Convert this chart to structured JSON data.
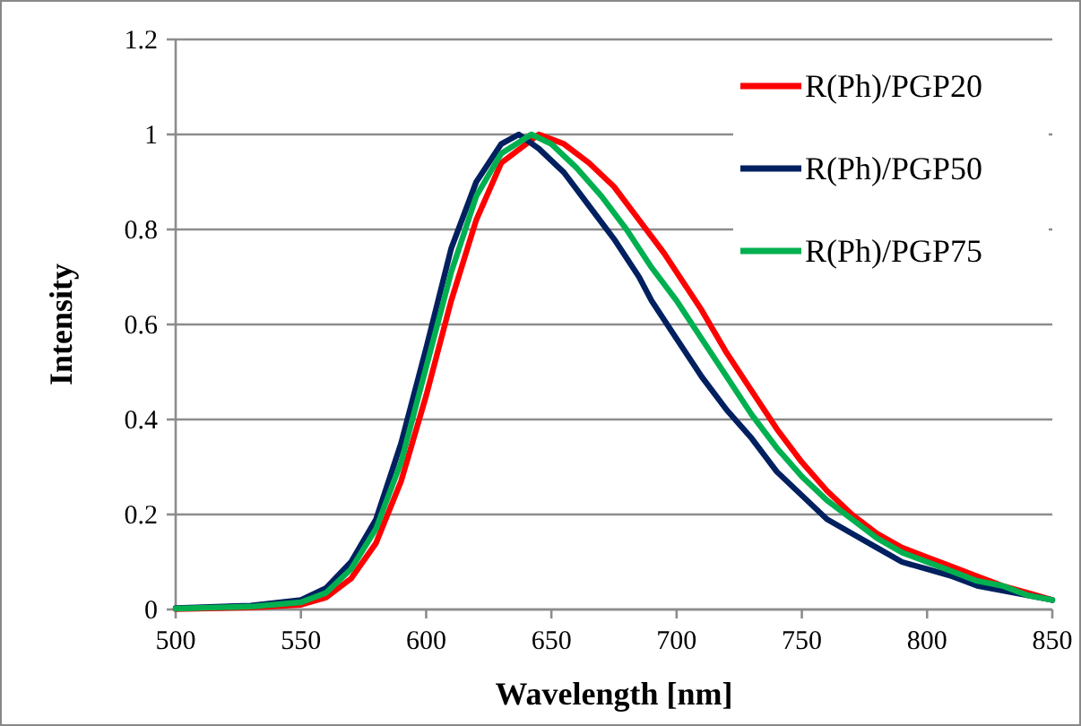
{
  "chart_data": {
    "type": "line",
    "xlabel": "Wavelength [nm]",
    "ylabel": "Intensity",
    "xlim": [
      500,
      850
    ],
    "xticks": [
      500,
      550,
      600,
      650,
      700,
      750,
      800,
      850
    ],
    "ylim": [
      0,
      1.2
    ],
    "yticks": [
      0,
      0.2,
      0.4,
      0.6,
      0.8,
      1,
      1.2
    ],
    "grid": "y",
    "legend": "top right",
    "marker": "none",
    "line_style": "solid",
    "series": [
      {
        "name": "R(Ph)/PGP20",
        "color": "#ff0000",
        "x": [
          500,
          530,
          550,
          560,
          570,
          580,
          590,
          600,
          610,
          620,
          630,
          645,
          655,
          665,
          675,
          685,
          695,
          700,
          710,
          720,
          730,
          740,
          750,
          760,
          770,
          780,
          790,
          800,
          810,
          820,
          830,
          840,
          850
        ],
        "values": [
          0.001,
          0.004,
          0.01,
          0.025,
          0.065,
          0.14,
          0.27,
          0.45,
          0.65,
          0.82,
          0.94,
          1.0,
          0.98,
          0.94,
          0.89,
          0.82,
          0.75,
          0.71,
          0.63,
          0.54,
          0.46,
          0.38,
          0.31,
          0.25,
          0.2,
          0.16,
          0.13,
          0.11,
          0.09,
          0.07,
          0.05,
          0.035,
          0.02
        ]
      },
      {
        "name": "R(Ph)/PGP50",
        "color": "#002060",
        "x": [
          500,
          530,
          550,
          560,
          570,
          580,
          590,
          600,
          610,
          620,
          630,
          637,
          645,
          655,
          665,
          675,
          685,
          690,
          700,
          710,
          720,
          730,
          740,
          750,
          760,
          770,
          780,
          790,
          800,
          810,
          820,
          830,
          840,
          850
        ],
        "values": [
          0.003,
          0.008,
          0.02,
          0.045,
          0.1,
          0.19,
          0.35,
          0.55,
          0.76,
          0.9,
          0.98,
          1.0,
          0.97,
          0.92,
          0.85,
          0.78,
          0.7,
          0.65,
          0.57,
          0.49,
          0.42,
          0.36,
          0.29,
          0.24,
          0.19,
          0.16,
          0.13,
          0.1,
          0.085,
          0.07,
          0.05,
          0.04,
          0.03,
          0.02
        ]
      },
      {
        "name": "R(Ph)/PGP75",
        "color": "#00b050",
        "x": [
          500,
          530,
          550,
          560,
          570,
          580,
          590,
          600,
          610,
          620,
          630,
          642,
          650,
          660,
          670,
          680,
          690,
          700,
          710,
          720,
          730,
          740,
          750,
          760,
          770,
          780,
          790,
          800,
          810,
          820,
          830,
          840,
          850
        ],
        "values": [
          0.002,
          0.006,
          0.015,
          0.035,
          0.085,
          0.17,
          0.31,
          0.51,
          0.71,
          0.87,
          0.96,
          1.0,
          0.98,
          0.93,
          0.87,
          0.8,
          0.72,
          0.65,
          0.57,
          0.49,
          0.41,
          0.34,
          0.28,
          0.23,
          0.19,
          0.15,
          0.12,
          0.1,
          0.08,
          0.06,
          0.05,
          0.03,
          0.02
        ]
      }
    ]
  }
}
